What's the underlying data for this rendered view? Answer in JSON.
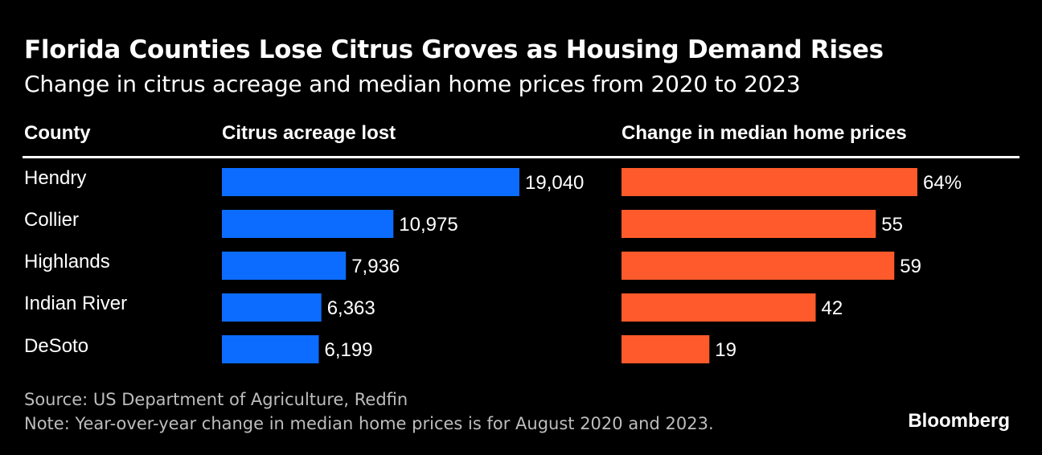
{
  "title": "Florida Counties Lose Citrus Groves as Housing Demand Rises",
  "subtitle": "Change in citrus acreage and median home prices from 2020 to 2023",
  "headers": {
    "county": "County",
    "acreage": "Citrus acreage lost",
    "prices": "Change in median home prices"
  },
  "source": "Source: US Department of Agriculture, Redfin",
  "note": "Note: Year-over-year change in median home prices is for August 2020 and 2023.",
  "brand": "Bloomberg",
  "colors": {
    "acreage_bar": "#0b6cff",
    "price_bar": "#ff5a2b",
    "background": "#000000",
    "text": "#ffffff"
  },
  "chart_data": [
    {
      "type": "bar",
      "orientation": "horizontal",
      "categories": [
        "Hendry",
        "Collier",
        "Highlands",
        "Indian River",
        "DeSoto"
      ],
      "values": [
        19040,
        10975,
        7936,
        6363,
        6199
      ],
      "labels": [
        "19,040",
        "10,975",
        "7,936",
        "6,363",
        "6,199"
      ],
      "title": "Citrus acreage lost"
    },
    {
      "type": "bar",
      "orientation": "horizontal",
      "categories": [
        "Hendry",
        "Collier",
        "Highlands",
        "Indian River",
        "DeSoto"
      ],
      "values": [
        64,
        55,
        59,
        42,
        19
      ],
      "labels": [
        "64%",
        "55",
        "59",
        "42",
        "19"
      ],
      "title": "Change in median home prices",
      "unit": "%"
    }
  ]
}
